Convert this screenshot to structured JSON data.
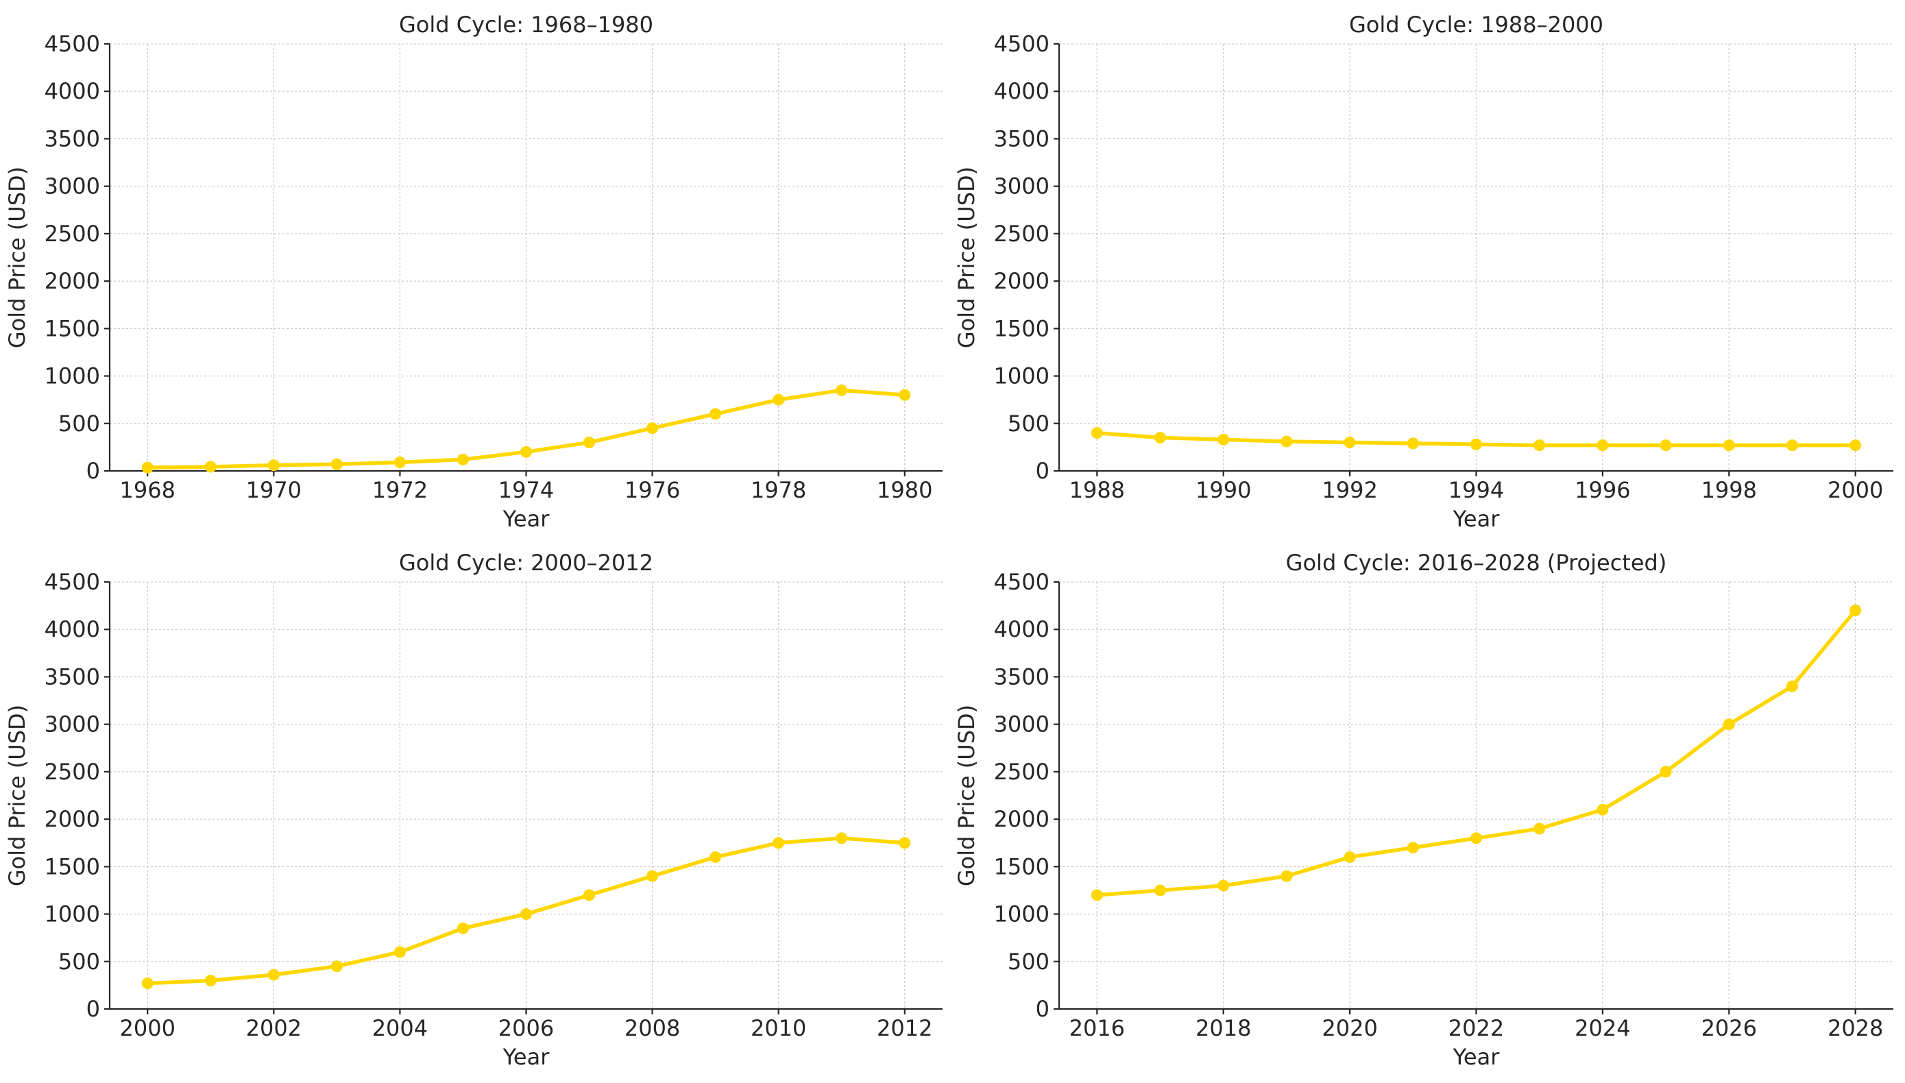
{
  "chart_data": [
    {
      "type": "line",
      "title": "Gold Cycle: 1968–1980",
      "xlabel": "Year",
      "ylabel": "Gold Price (USD)",
      "x": [
        1968,
        1969,
        1970,
        1971,
        1972,
        1973,
        1974,
        1975,
        1976,
        1977,
        1978,
        1979,
        1980
      ],
      "values": [
        35,
        43,
        60,
        70,
        90,
        120,
        200,
        300,
        450,
        600,
        750,
        850,
        800
      ],
      "xticks": [
        1968,
        1970,
        1972,
        1974,
        1976,
        1978,
        1980
      ],
      "xlim": [
        1967.4,
        1980.6
      ],
      "yticks": [
        0,
        500,
        1000,
        1500,
        2000,
        2500,
        3000,
        3500,
        4000,
        4500
      ],
      "ylim": [
        0,
        4500
      ],
      "grid": true,
      "color": "#FFD700"
    },
    {
      "type": "line",
      "title": "Gold Cycle: 1988–2000",
      "xlabel": "Year",
      "ylabel": "Gold Price (USD)",
      "x": [
        1988,
        1989,
        1990,
        1991,
        1992,
        1993,
        1994,
        1995,
        1996,
        1997,
        1998,
        1999,
        2000
      ],
      "values": [
        400,
        350,
        330,
        310,
        300,
        290,
        280,
        270,
        270,
        270,
        270,
        270,
        270
      ],
      "xticks": [
        1988,
        1990,
        1992,
        1994,
        1996,
        1998,
        2000
      ],
      "xlim": [
        1987.4,
        2000.6
      ],
      "yticks": [
        0,
        500,
        1000,
        1500,
        2000,
        2500,
        3000,
        3500,
        4000,
        4500
      ],
      "ylim": [
        0,
        4500
      ],
      "grid": true,
      "color": "#FFD700"
    },
    {
      "type": "line",
      "title": "Gold Cycle: 2000–2012",
      "xlabel": "Year",
      "ylabel": "Gold Price (USD)",
      "x": [
        2000,
        2001,
        2002,
        2003,
        2004,
        2005,
        2006,
        2007,
        2008,
        2009,
        2010,
        2011,
        2012
      ],
      "values": [
        270,
        300,
        360,
        450,
        600,
        850,
        1000,
        1200,
        1400,
        1600,
        1750,
        1800,
        1750
      ],
      "xticks": [
        2000,
        2002,
        2004,
        2006,
        2008,
        2010,
        2012
      ],
      "xlim": [
        1999.4,
        2012.6
      ],
      "yticks": [
        0,
        500,
        1000,
        1500,
        2000,
        2500,
        3000,
        3500,
        4000,
        4500
      ],
      "ylim": [
        0,
        4500
      ],
      "grid": true,
      "color": "#FFD700"
    },
    {
      "type": "line",
      "title": "Gold Cycle: 2016–2028 (Projected)",
      "xlabel": "Year",
      "ylabel": "Gold Price (USD)",
      "x": [
        2016,
        2017,
        2018,
        2019,
        2020,
        2021,
        2022,
        2023,
        2024,
        2025,
        2026,
        2027,
        2028
      ],
      "values": [
        1200,
        1250,
        1300,
        1400,
        1600,
        1700,
        1800,
        1900,
        2100,
        2500,
        3000,
        3400,
        4200
      ],
      "xticks": [
        2016,
        2018,
        2020,
        2022,
        2024,
        2026,
        2028
      ],
      "xlim": [
        2015.4,
        2028.6
      ],
      "yticks": [
        0,
        500,
        1000,
        1500,
        2000,
        2500,
        3000,
        3500,
        4000,
        4500
      ],
      "ylim": [
        0,
        4500
      ],
      "grid": true,
      "color": "#FFD700"
    }
  ]
}
